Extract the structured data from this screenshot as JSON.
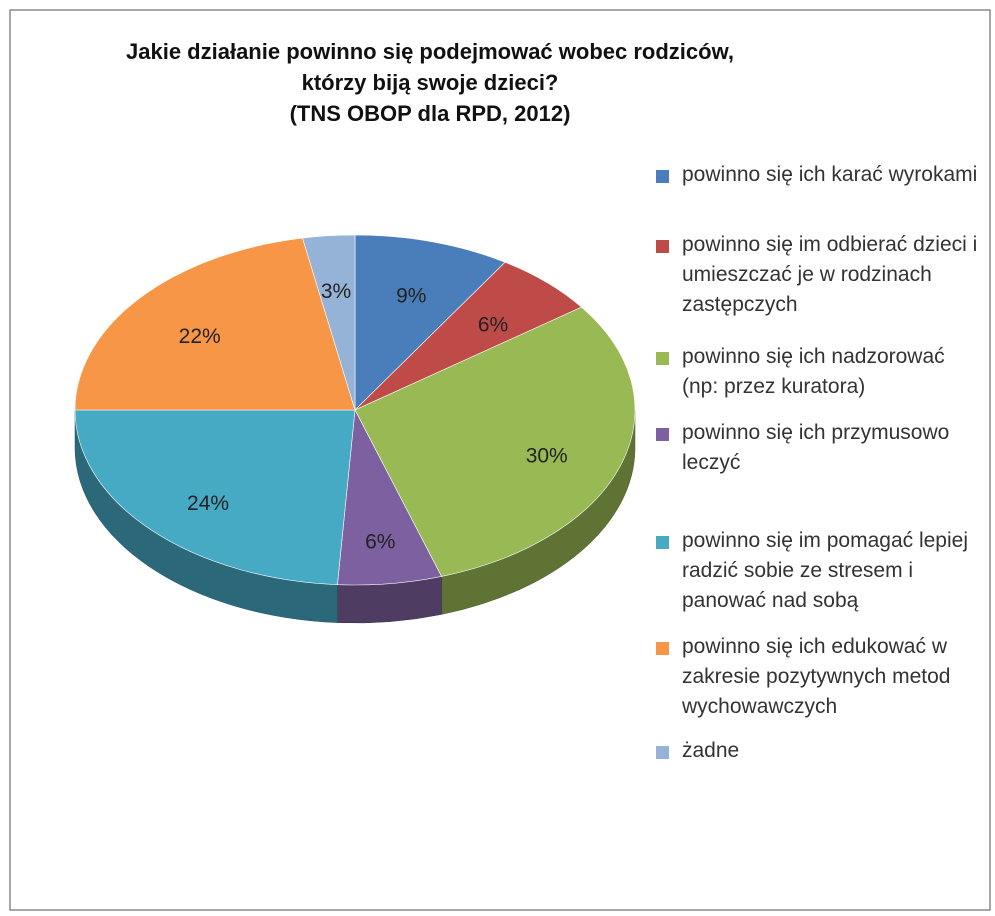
{
  "chart_data": {
    "type": "pie",
    "title": "Jakie działanie powinno się podejmować wobec rodziców, którzy biją swoje dzieci?",
    "subtitle": "(TNS OBOP dla RPD, 2012)",
    "categories": [
      "powinno się ich karać wyrokami",
      "powinno się im odbierać dzieci i umieszczać je w rodzinach zastępczych",
      "powinno się ich nadzorować (np: przez kuratora)",
      "powinno się ich przymusowo leczyć",
      "powinno się im pomagać lepiej radzić sobie ze stresem i panować nad sobą",
      "powinno się ich edukować w zakresie pozytywnych metod wychowawczych",
      "żadne"
    ],
    "values": [
      9,
      6,
      30,
      6,
      24,
      22,
      3
    ],
    "value_labels": [
      "9%",
      "6%",
      "30%",
      "6%",
      "24%",
      "22%",
      "3%"
    ],
    "colors": [
      "#4a7ebb",
      "#be4b48",
      "#98b954",
      "#7d60a0",
      "#46aac5",
      "#f79646",
      "#95b3d7"
    ],
    "legend": "right"
  }
}
